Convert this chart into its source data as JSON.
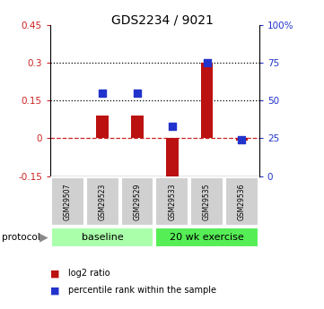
{
  "title": "GDS2234 / 9021",
  "samples": [
    "GSM29507",
    "GSM29523",
    "GSM29529",
    "GSM29533",
    "GSM29535",
    "GSM29536"
  ],
  "log2_ratio": [
    0.0,
    0.09,
    0.09,
    -0.175,
    0.3,
    -0.01
  ],
  "percentile_rank_pct": [
    null,
    55,
    55,
    33,
    75,
    24
  ],
  "bar_color": "#bb1111",
  "dot_color": "#2233cc",
  "ylim_left": [
    -0.15,
    0.45
  ],
  "ylim_right": [
    0,
    100
  ],
  "yticks_left": [
    -0.15,
    0.0,
    0.15,
    0.3,
    0.45
  ],
  "ytick_labels_left": [
    "-0.15",
    "0",
    "0.15",
    "0.3",
    "0.45"
  ],
  "yticks_right": [
    0,
    25,
    50,
    75,
    100
  ],
  "ytick_labels_right": [
    "0",
    "25",
    "50",
    "75",
    "100%"
  ],
  "hlines": [
    0.0,
    0.15,
    0.3
  ],
  "hlines_style": [
    "dashed",
    "dotted",
    "dotted"
  ],
  "hlines_color": [
    "#cc2222",
    "black",
    "black"
  ],
  "bg_color": "#ffffff",
  "bar_width": 0.35,
  "dot_size": 40,
  "baseline_color": "#aaffaa",
  "exercise_color": "#55ee55"
}
